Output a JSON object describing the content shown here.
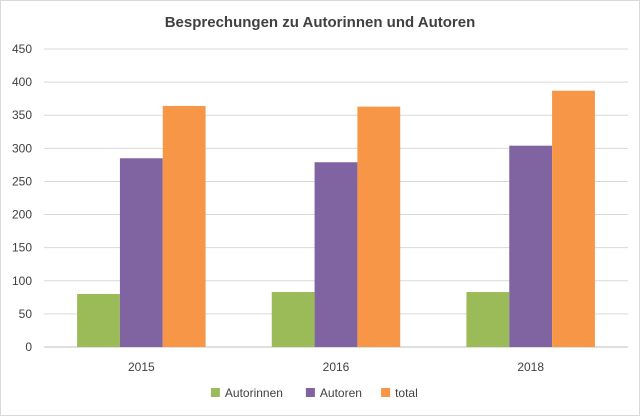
{
  "chart_data": {
    "type": "bar",
    "title": "Besprechungen zu Autorinnen und Autoren",
    "categories": [
      "2015",
      "2016",
      "2018"
    ],
    "series": [
      {
        "name": "Autorinnen",
        "color": "#9bbb59",
        "values": [
          80,
          83,
          83
        ]
      },
      {
        "name": "Autoren",
        "color": "#8064a2",
        "values": [
          285,
          279,
          304
        ]
      },
      {
        "name": "total",
        "color": "#f79646",
        "values": [
          364,
          363,
          387
        ]
      }
    ],
    "ylim": [
      0,
      450
    ],
    "yticks": [
      "0",
      "50",
      "100",
      "150",
      "200",
      "250",
      "300",
      "350",
      "400",
      "450"
    ],
    "grid": true,
    "legend_position": "bottom",
    "xlabel": "",
    "ylabel": ""
  }
}
